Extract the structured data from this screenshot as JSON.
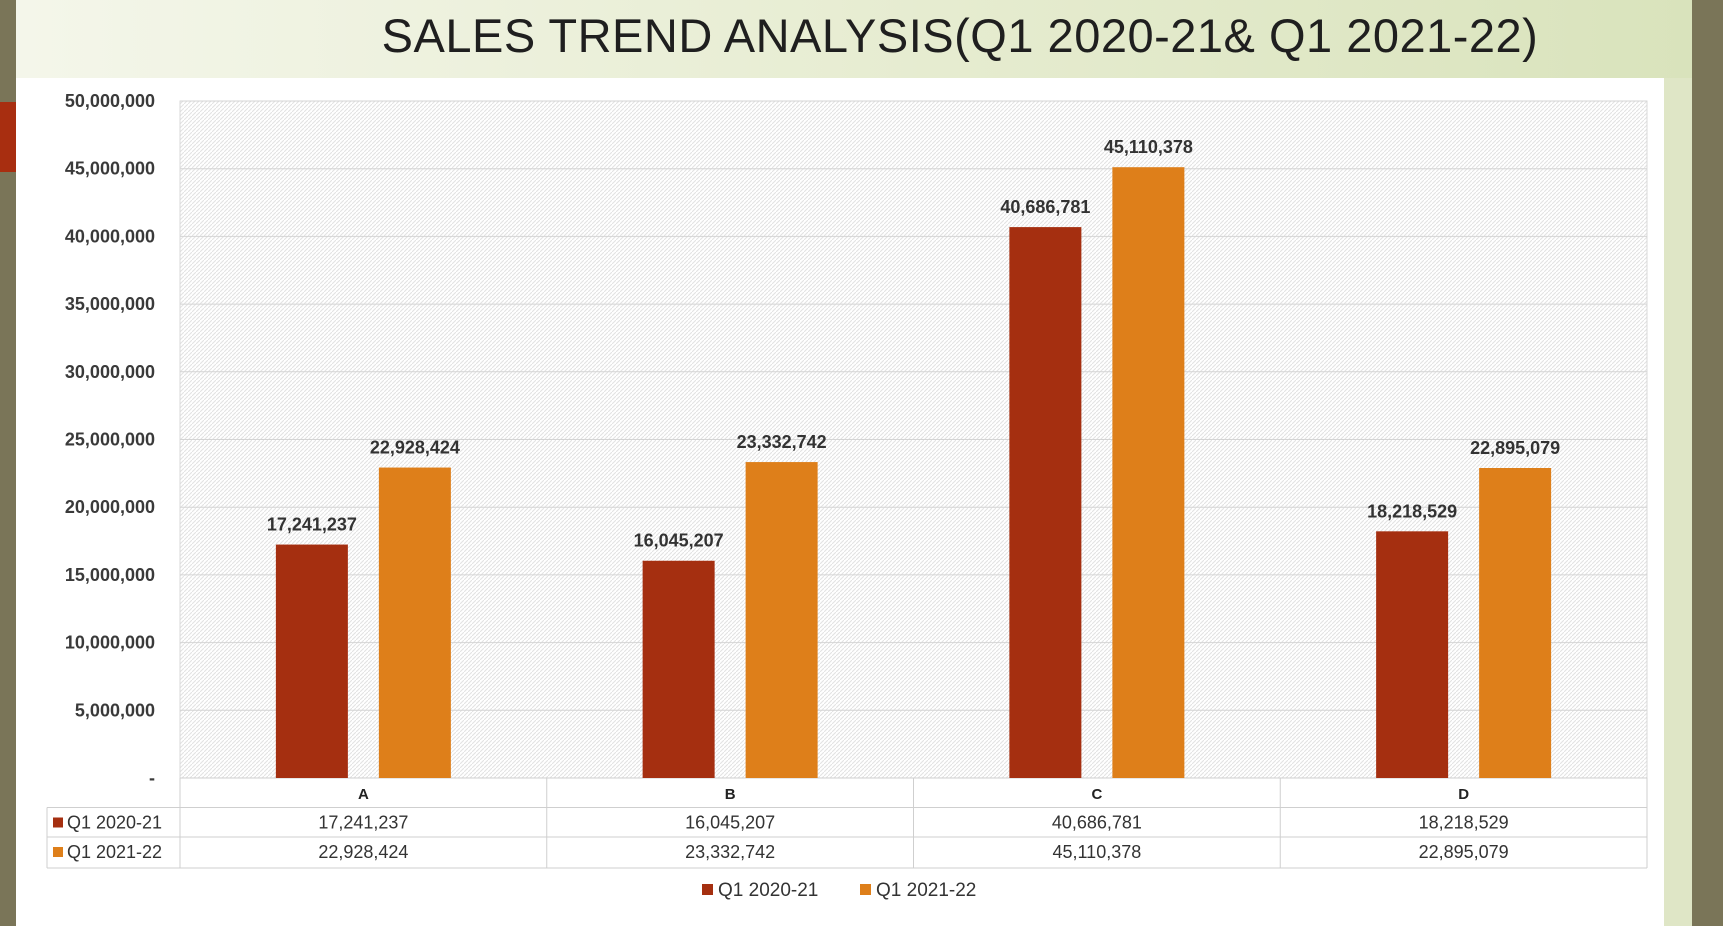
{
  "slide": {
    "title": "SALES TREND ANALYSIS(Q1 2020-21& Q1 2021-22)",
    "accent_color": "#a82e10"
  },
  "chart_data": {
    "type": "bar",
    "title": "",
    "xlabel": "",
    "ylabel": "",
    "categories": [
      "A",
      "B",
      "C",
      "D"
    ],
    "series": [
      {
        "name": "Q1 2020-21",
        "color": "#a52f10",
        "values": [
          17241237,
          16045207,
          40686781,
          18218529
        ],
        "labels": [
          "17,241,237",
          "16,045,207",
          "40,686,781",
          "18,218,529"
        ]
      },
      {
        "name": "Q1 2021-22",
        "color": "#de7f1a",
        "values": [
          22928424,
          23332742,
          45110378,
          22895079
        ],
        "labels": [
          "22,928,424",
          "23,332,742",
          "45,110,378",
          "22,895,079"
        ]
      }
    ],
    "ylim": [
      0,
      50000000
    ],
    "yticks": [
      0,
      5000000,
      10000000,
      15000000,
      20000000,
      25000000,
      30000000,
      35000000,
      40000000,
      45000000,
      50000000
    ],
    "ytick_labels": [
      "-",
      "5,000,000",
      "10,000,000",
      "15,000,000",
      "20,000,000",
      "25,000,000",
      "30,000,000",
      "35,000,000",
      "40,000,000",
      "45,000,000",
      "50,000,000"
    ],
    "grid": true,
    "data_table": true,
    "legend_position": "bottom"
  }
}
